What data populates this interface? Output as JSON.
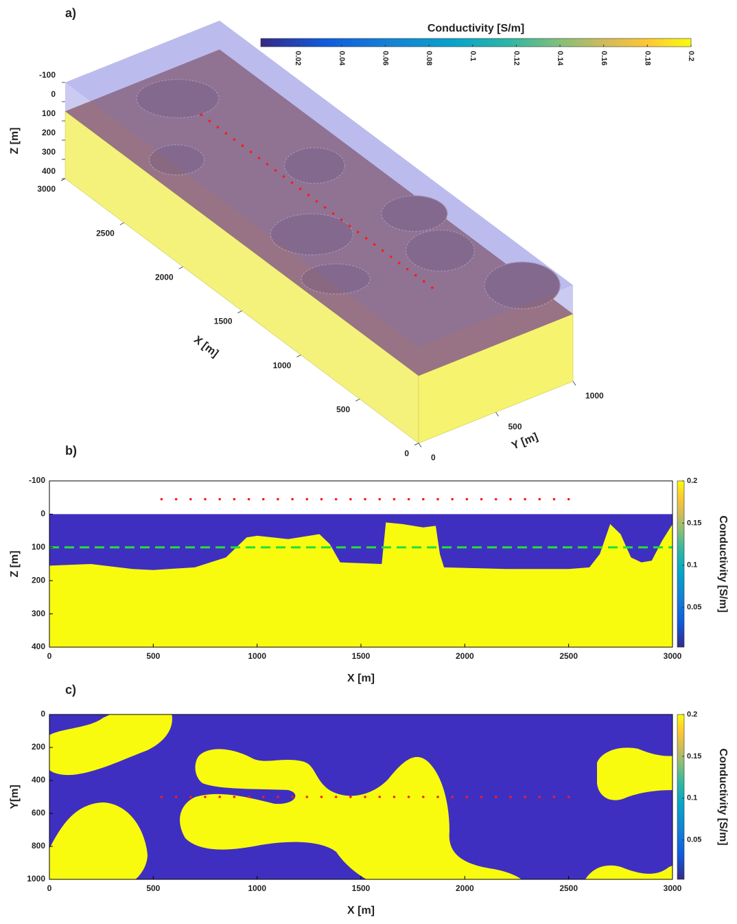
{
  "chart_data": [
    {
      "type": "terrain3d",
      "panel_label": "a)",
      "xlabel": "X [m]",
      "ylabel": "Y [m]",
      "zlabel": "Z [m]",
      "xlim": [
        0,
        3000
      ],
      "ylim": [
        0,
        1000
      ],
      "zlim": [
        -100,
        400
      ],
      "xticks": [
        0,
        500,
        1000,
        1500,
        2000,
        2500,
        3000
      ],
      "yticks": [
        0,
        500,
        1000
      ],
      "zticks": [
        -100,
        0,
        100,
        200,
        300,
        400
      ],
      "colorbar": {
        "title": "Conductivity [S/m]",
        "clim": [
          0.003,
          0.2
        ],
        "ticks": [
          0.02,
          0.04,
          0.06,
          0.08,
          0.1,
          0.12,
          0.14,
          0.16,
          0.18,
          0.2
        ]
      },
      "survey": {
        "x": [
          540,
          610,
          680,
          750,
          820,
          890,
          960,
          1030,
          1100,
          1170,
          1240,
          1310,
          1380,
          1450,
          1520,
          1590,
          1660,
          1730,
          1800,
          1870,
          1940,
          2010,
          2080,
          2150,
          2220,
          2290,
          2360,
          2430,
          2500
        ],
        "y": 500,
        "z": 0,
        "color": "#ff1a1a"
      }
    },
    {
      "type": "section",
      "panel_label": "b)",
      "xlabel": "X [m]",
      "ylabel": "Z [m]",
      "xlim": [
        0,
        3000
      ],
      "ylim": [
        -100,
        400
      ],
      "y_reversed": true,
      "xticks": [
        0,
        500,
        1000,
        1500,
        2000,
        2500,
        3000
      ],
      "yticks": [
        -100,
        0,
        100,
        200,
        300,
        400
      ],
      "colorbar": {
        "title": "Conductivity [S/m]",
        "clim": [
          0.003,
          0.2
        ],
        "ticks": [
          0.05,
          0.1,
          0.15,
          0.2
        ]
      },
      "low_color": "#3f2fc0",
      "high_color": "#f9fb0e",
      "boundary": {
        "x": [
          0,
          200,
          400,
          500,
          700,
          850,
          950,
          1000,
          1150,
          1300,
          1350,
          1400,
          1600,
          1620,
          1700,
          1800,
          1860,
          1880,
          1900,
          2200,
          2500,
          2600,
          2650,
          2700,
          2750,
          2800,
          2850,
          2900,
          2950,
          3000
        ],
        "z": [
          155,
          150,
          165,
          168,
          160,
          130,
          70,
          65,
          75,
          60,
          90,
          145,
          150,
          25,
          30,
          40,
          35,
          120,
          160,
          165,
          165,
          160,
          120,
          30,
          60,
          130,
          145,
          140,
          80,
          30
        ]
      },
      "reference_line": {
        "z": 100,
        "color": "#22e03a"
      },
      "survey": {
        "x": [
          540,
          610,
          680,
          750,
          820,
          890,
          960,
          1030,
          1100,
          1170,
          1240,
          1310,
          1380,
          1450,
          1520,
          1590,
          1660,
          1730,
          1800,
          1870,
          1940,
          2010,
          2080,
          2150,
          2220,
          2290,
          2360,
          2430,
          2500
        ],
        "z": -45,
        "color": "#ff1a1a"
      }
    },
    {
      "type": "plan",
      "panel_label": "c)",
      "xlabel": "X [m]",
      "ylabel": "Y[m]",
      "xlim": [
        0,
        3000
      ],
      "ylim": [
        0,
        1000
      ],
      "y_reversed": true,
      "xticks": [
        0,
        500,
        1000,
        1500,
        2000,
        2500,
        3000
      ],
      "yticks": [
        0,
        200,
        400,
        600,
        800,
        1000
      ],
      "colorbar": {
        "title": "Conductivity [S/m]",
        "clim": [
          0.003,
          0.2
        ],
        "ticks": [
          0.05,
          0.1,
          0.15,
          0.2
        ]
      },
      "low_color": "#3f2fc0",
      "high_color": "#f9fb0e",
      "survey": {
        "x": [
          540,
          610,
          680,
          750,
          820,
          890,
          960,
          1030,
          1100,
          1170,
          1240,
          1310,
          1380,
          1450,
          1520,
          1590,
          1660,
          1730,
          1800,
          1870,
          1940,
          2010,
          2080,
          2150,
          2220,
          2290,
          2360,
          2430,
          2500
        ],
        "y": 500,
        "color": "#ff1a1a"
      }
    }
  ]
}
